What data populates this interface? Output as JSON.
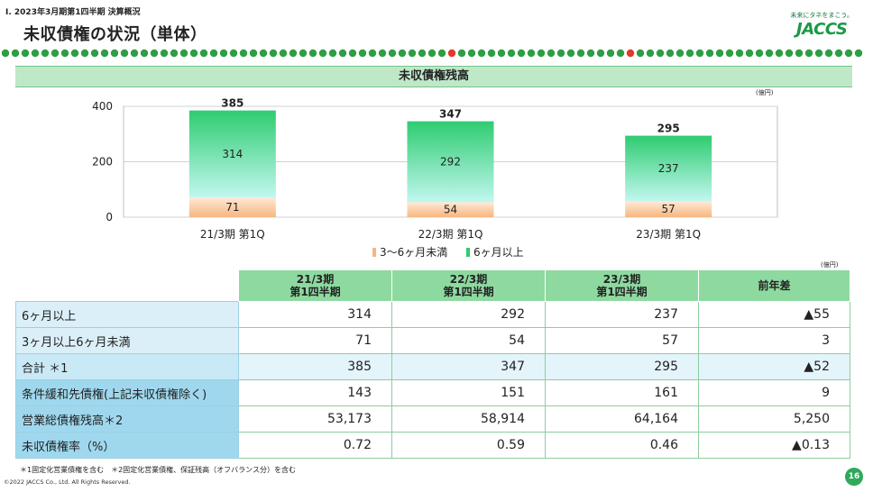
{
  "header": {
    "breadcrumb": "Ⅰ. 2023年3月期第1四半期 決算概況",
    "title": "未収債権の状況（単体）",
    "logo_tagline": "未来にタネをまこう。",
    "logo_name": "JACCS"
  },
  "section_title": "未収債権残高",
  "colors": {
    "brand_green": "#1a9a48",
    "over6_top": "#2ecc71",
    "over6_bottom": "#c2f7ef",
    "under6_top": "#ffe9d6",
    "under6_bottom": "#f7b680",
    "dot_green": "#2e9e45",
    "dot_red": "#e23a2a"
  },
  "chart_data": {
    "type": "bar",
    "stacked": true,
    "unit": "(億円)",
    "categories": [
      "21/3期 第1Q",
      "22/3期 第1Q",
      "23/3期 第1Q"
    ],
    "series": [
      {
        "name": "3～6ヶ月未満",
        "values": [
          71,
          54,
          57
        ]
      },
      {
        "name": "6ヶ月以上",
        "values": [
          314,
          292,
          237
        ]
      }
    ],
    "totals": [
      385,
      347,
      295
    ],
    "ylim": [
      0,
      400
    ],
    "yticks": [
      0,
      200,
      400
    ],
    "grid": true,
    "legend_position": "bottom"
  },
  "table": {
    "unit": "(億円)",
    "headers": [
      {
        "line1": "21/3期",
        "line2": "第1四半期"
      },
      {
        "line1": "22/3期",
        "line2": "第1四半期"
      },
      {
        "line1": "23/3期",
        "line2": "第1四半期"
      },
      {
        "line1": "前年差",
        "line2": ""
      }
    ],
    "rows": [
      {
        "label": "6ヶ月以上",
        "values": [
          "314",
          "292",
          "237",
          "▲55"
        ]
      },
      {
        "label": "3ヶ月以上6ヶ月未満",
        "values": [
          "71",
          "54",
          "57",
          "3"
        ]
      },
      {
        "label": "合計 ＊1",
        "values": [
          "385",
          "347",
          "295",
          "▲52"
        ]
      },
      {
        "label": "条件緩和先債権(上記未収債権除く)",
        "values": [
          "143",
          "151",
          "161",
          "9"
        ]
      },
      {
        "label": "営業総債権残高＊2",
        "values": [
          "53,173",
          "58,914",
          "64,164",
          "5,250"
        ]
      },
      {
        "label": "未収債権率（%）",
        "values": [
          "0.72",
          "0.59",
          "0.46",
          "▲0.13"
        ]
      }
    ]
  },
  "footnote": "＊1固定化営業債権を含む　＊2固定化営業債権、保証残高（オフバランス分）を含む",
  "copyright": "©2022 JACCS Co., Ltd. All Rights Reserved.",
  "page_number": "16"
}
